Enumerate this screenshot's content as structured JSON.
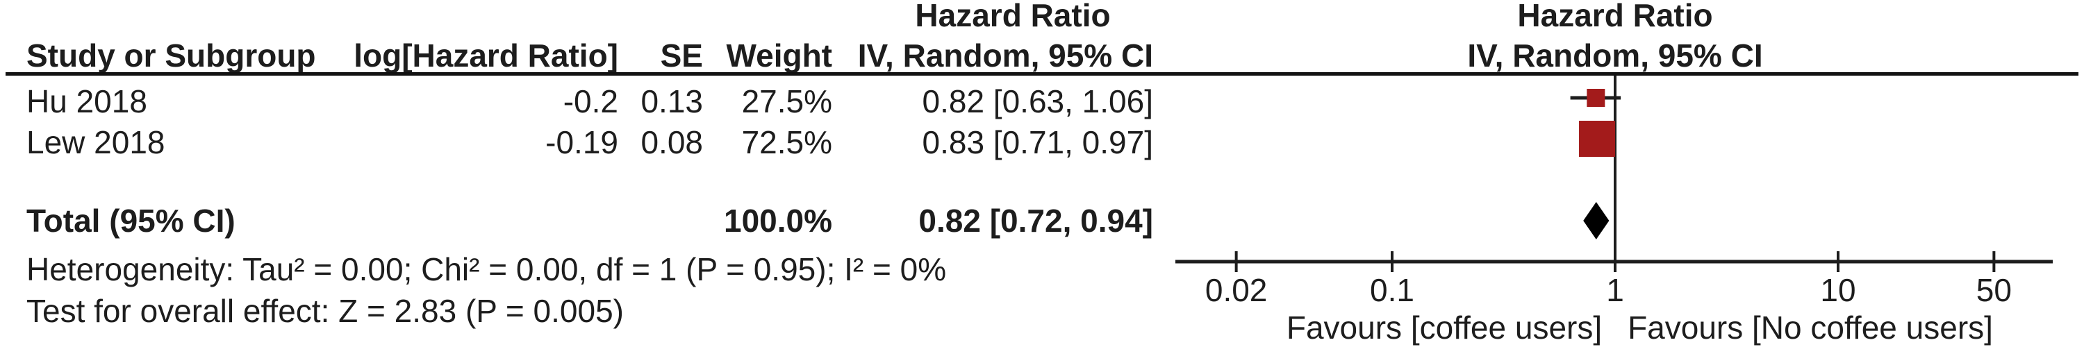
{
  "table": {
    "header_top": {
      "hazard_ratio": "Hazard Ratio"
    },
    "columns": {
      "study": "Study or Subgroup",
      "log_hr": "log[Hazard Ratio]",
      "se": "SE",
      "weight": "Weight",
      "ci": "IV, Random, 95% CI"
    },
    "rows": [
      {
        "study": "Hu 2018",
        "log_hr": "-0.2",
        "se": "0.13",
        "weight": "27.5%",
        "ci_text": "0.82 [0.63, 1.06]"
      },
      {
        "study": "Lew 2018",
        "log_hr": "-0.19",
        "se": "0.08",
        "weight": "72.5%",
        "ci_text": "0.83 [0.71, 0.97]"
      }
    ],
    "total_row": {
      "label": "Total (95% CI)",
      "weight": "100.0%",
      "ci_text": "0.82 [0.72, 0.94]"
    }
  },
  "plot": {
    "header_top": "Hazard Ratio",
    "header_sub": "IV, Random, 95% CI"
  },
  "footer": {
    "heterogeneity": "Heterogeneity: Tau² = 0.00; Chi² = 0.00, df = 1 (P = 0.95); I² = 0%",
    "overall_effect": "Test for overall effect: Z = 2.83 (P = 0.005)"
  },
  "chart_data": {
    "type": "forest",
    "x_scale": "log10",
    "null_line_value": 1,
    "axis_range": [
      0.011,
      90
    ],
    "axis_ticks": [
      0.02,
      0.1,
      1,
      10,
      50
    ],
    "axis_tick_labels": [
      "0.02",
      "0.1",
      "1",
      "10",
      "50"
    ],
    "favours_left": "Favours [coffee users]",
    "favours_right": "Favours [No coffee users]",
    "effect_label": "Hazard Ratio",
    "model": "IV, Random, 95% CI",
    "studies": [
      {
        "name": "Hu 2018",
        "hr": 0.82,
        "ci_low": 0.63,
        "ci_high": 1.06,
        "weight_pct": 27.5
      },
      {
        "name": "Lew 2018",
        "hr": 0.83,
        "ci_low": 0.71,
        "ci_high": 0.97,
        "weight_pct": 72.5
      }
    ],
    "total": {
      "hr": 0.82,
      "ci_low": 0.72,
      "ci_high": 0.94,
      "weight_pct": 100.0
    },
    "marker_color": "#a31b1b",
    "diamond_color": "#000000",
    "line_color": "#1d1d1d"
  }
}
